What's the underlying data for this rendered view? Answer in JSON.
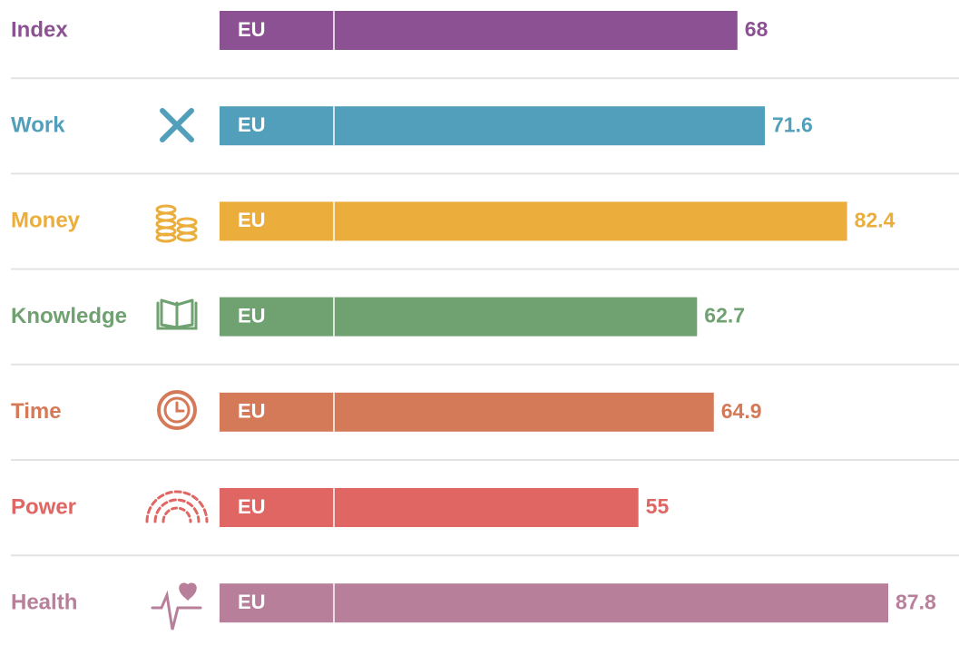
{
  "chart_data": {
    "type": "bar",
    "categories": [
      "Index",
      "Work",
      "Money",
      "Knowledge",
      "Time",
      "Power",
      "Health"
    ],
    "values": [
      68,
      71.6,
      82.4,
      62.7,
      64.9,
      55,
      87.8
    ],
    "colors": [
      "#8c5193",
      "#529fbb",
      "#ebae3c",
      "#6fa171",
      "#d57a58",
      "#df6662",
      "#b87f9a"
    ],
    "bar_label": "EU"
  }
}
